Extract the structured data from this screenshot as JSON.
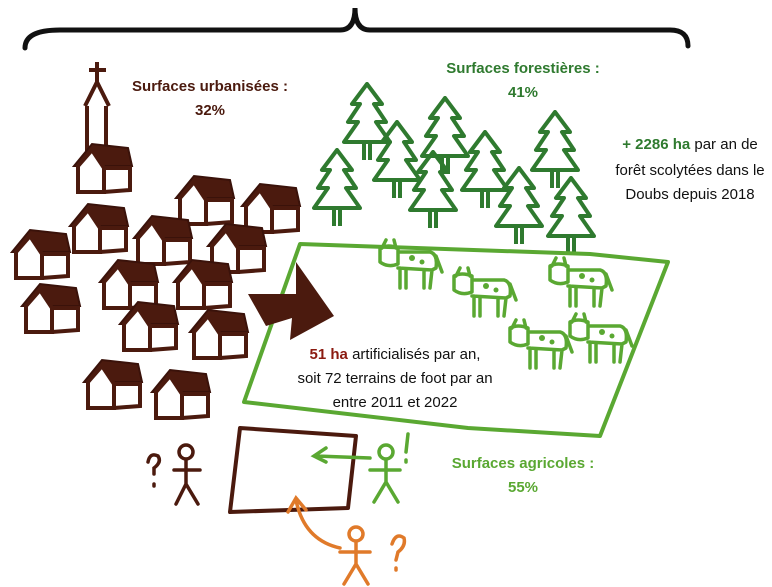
{
  "urban": {
    "title": "Surfaces urbanisées :",
    "value": "32%"
  },
  "forest": {
    "title": "Surfaces forestières :",
    "value": "41%"
  },
  "forest_note": {
    "highlight": "+ 2286 ha",
    "lines": [
      "par an de",
      "forêt scolytées dans le",
      "Doubs depuis 2018"
    ]
  },
  "artificial_note": {
    "highlight": "51 ha",
    "lines": [
      "artificialisés par an,",
      "soit 72 terrains de foot par an",
      "entre 2011 et 2022"
    ]
  },
  "agricultural": {
    "title": "Surfaces agricoles :",
    "value": "55%"
  }
}
